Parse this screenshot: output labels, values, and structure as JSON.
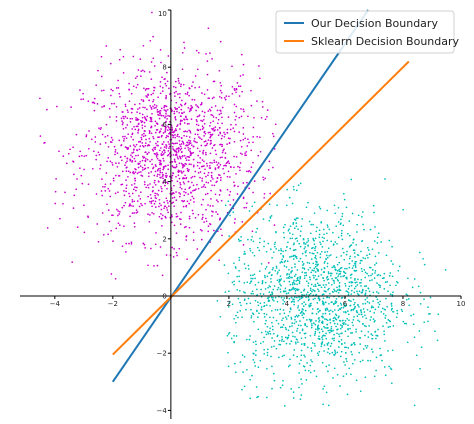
{
  "chart_data": {
    "type": "scatter",
    "title": "",
    "xlabel": "",
    "ylabel": "",
    "xlim": [
      -5.2,
      10
    ],
    "ylim": [
      -4.3,
      10
    ],
    "x_ticks": [
      -4,
      -2,
      0,
      2,
      4,
      6,
      8,
      10
    ],
    "y_ticks": [
      -4,
      -2,
      0,
      2,
      4,
      6,
      8,
      10
    ],
    "x_tick_labels": [
      "−4",
      "−2",
      "0",
      "2",
      "4",
      "6",
      "8",
      "10"
    ],
    "y_tick_labels": [
      "−4",
      "−2",
      "0",
      "2",
      "4",
      "6",
      "8",
      "10"
    ],
    "grid": false,
    "axes_style": "centered spines through origin",
    "clusters": [
      {
        "color": "#cc00cc",
        "center": [
          0,
          5
        ],
        "std": [
          1.5,
          1.5
        ],
        "count": 1500,
        "x_range": [
          -4.6,
          3.8
        ],
        "y_range": [
          0.3,
          10
        ]
      },
      {
        "color": "#00c0b8",
        "center": [
          5,
          0
        ],
        "std": [
          1.5,
          1.5
        ],
        "count": 1500,
        "x_range": [
          1.6,
          9.5
        ],
        "y_range": [
          -4,
          4.3
        ]
      }
    ],
    "lines": [
      {
        "name": "Our Decision Boundary",
        "color": "#1f77b4",
        "x": [
          -2,
          6.8
        ],
        "y": [
          -3,
          10
        ]
      },
      {
        "name": "Sklearn Decision Boundary",
        "color": "#ff7f0e",
        "x": [
          -2,
          8.2
        ],
        "y": [
          -2.05,
          8.2
        ]
      }
    ],
    "legend": {
      "position": "top-right",
      "entries": [
        "Our Decision Boundary",
        "Sklearn Decision Boundary"
      ]
    }
  }
}
